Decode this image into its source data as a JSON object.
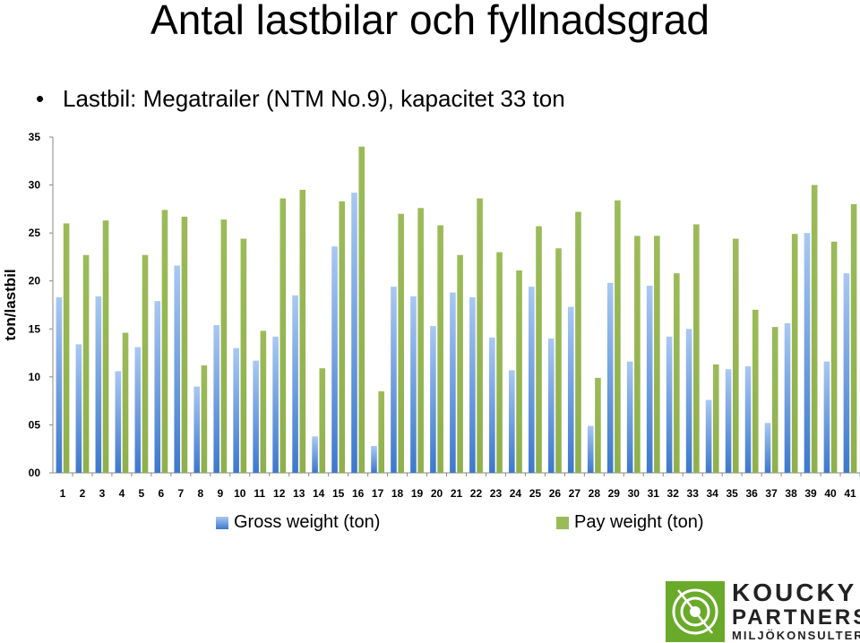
{
  "slide": {
    "title": "Antal lastbilar och fyllnadsgrad",
    "bullet": "Lastbil: Megatrailer (NTM No.9), kapacitet 33 ton",
    "bullet_icon": "•"
  },
  "logo": {
    "line1": "KOUCKY",
    "line2": "PARTNERS",
    "line3": "MILJÖKONSULTER",
    "color": "#6aaa2a"
  },
  "chart_data": {
    "type": "bar",
    "title": "",
    "xlabel": "",
    "ylabel": "ton/lastbil",
    "ylim": [
      0,
      35
    ],
    "y_ticks": [
      "00",
      "05",
      "10",
      "15",
      "20",
      "25",
      "30",
      "35"
    ],
    "grid": false,
    "legend_position": "bottom",
    "categories": [
      "1",
      "2",
      "3",
      "4",
      "5",
      "6",
      "7",
      "8",
      "9",
      "10",
      "11",
      "12",
      "13",
      "14",
      "15",
      "16",
      "17",
      "18",
      "19",
      "20",
      "21",
      "22",
      "23",
      "24",
      "25",
      "26",
      "27",
      "28",
      "29",
      "30",
      "31",
      "32",
      "33",
      "34",
      "35",
      "36",
      "37",
      "38",
      "39",
      "40",
      "41"
    ],
    "series": [
      {
        "name": "Gross weight (ton)",
        "color": "#5b8fd6",
        "values": [
          18.3,
          13.4,
          18.4,
          10.6,
          13.1,
          17.9,
          21.6,
          9.0,
          15.4,
          13.0,
          11.7,
          14.2,
          18.5,
          3.8,
          23.6,
          29.2,
          2.8,
          19.4,
          18.4,
          15.3,
          18.8,
          18.3,
          14.1,
          10.7,
          19.4,
          14.0,
          17.3,
          4.9,
          19.8,
          11.6,
          19.5,
          14.2,
          15.0,
          7.6,
          10.8,
          11.1,
          5.2,
          15.6,
          25.0,
          11.6,
          20.8
        ]
      },
      {
        "name": "Pay weight (ton)",
        "color": "#9bbb59",
        "values": [
          26.0,
          22.7,
          26.3,
          14.6,
          22.7,
          27.4,
          26.7,
          11.2,
          26.4,
          24.4,
          14.8,
          28.6,
          29.5,
          10.9,
          28.3,
          34.0,
          8.5,
          27.0,
          27.6,
          25.8,
          22.7,
          28.6,
          23.0,
          21.1,
          25.7,
          23.4,
          27.2,
          9.9,
          28.4,
          24.7,
          24.7,
          20.8,
          25.9,
          11.3,
          24.4,
          17.0,
          15.2,
          24.9,
          30.0,
          24.1,
          28.0
        ]
      }
    ]
  }
}
